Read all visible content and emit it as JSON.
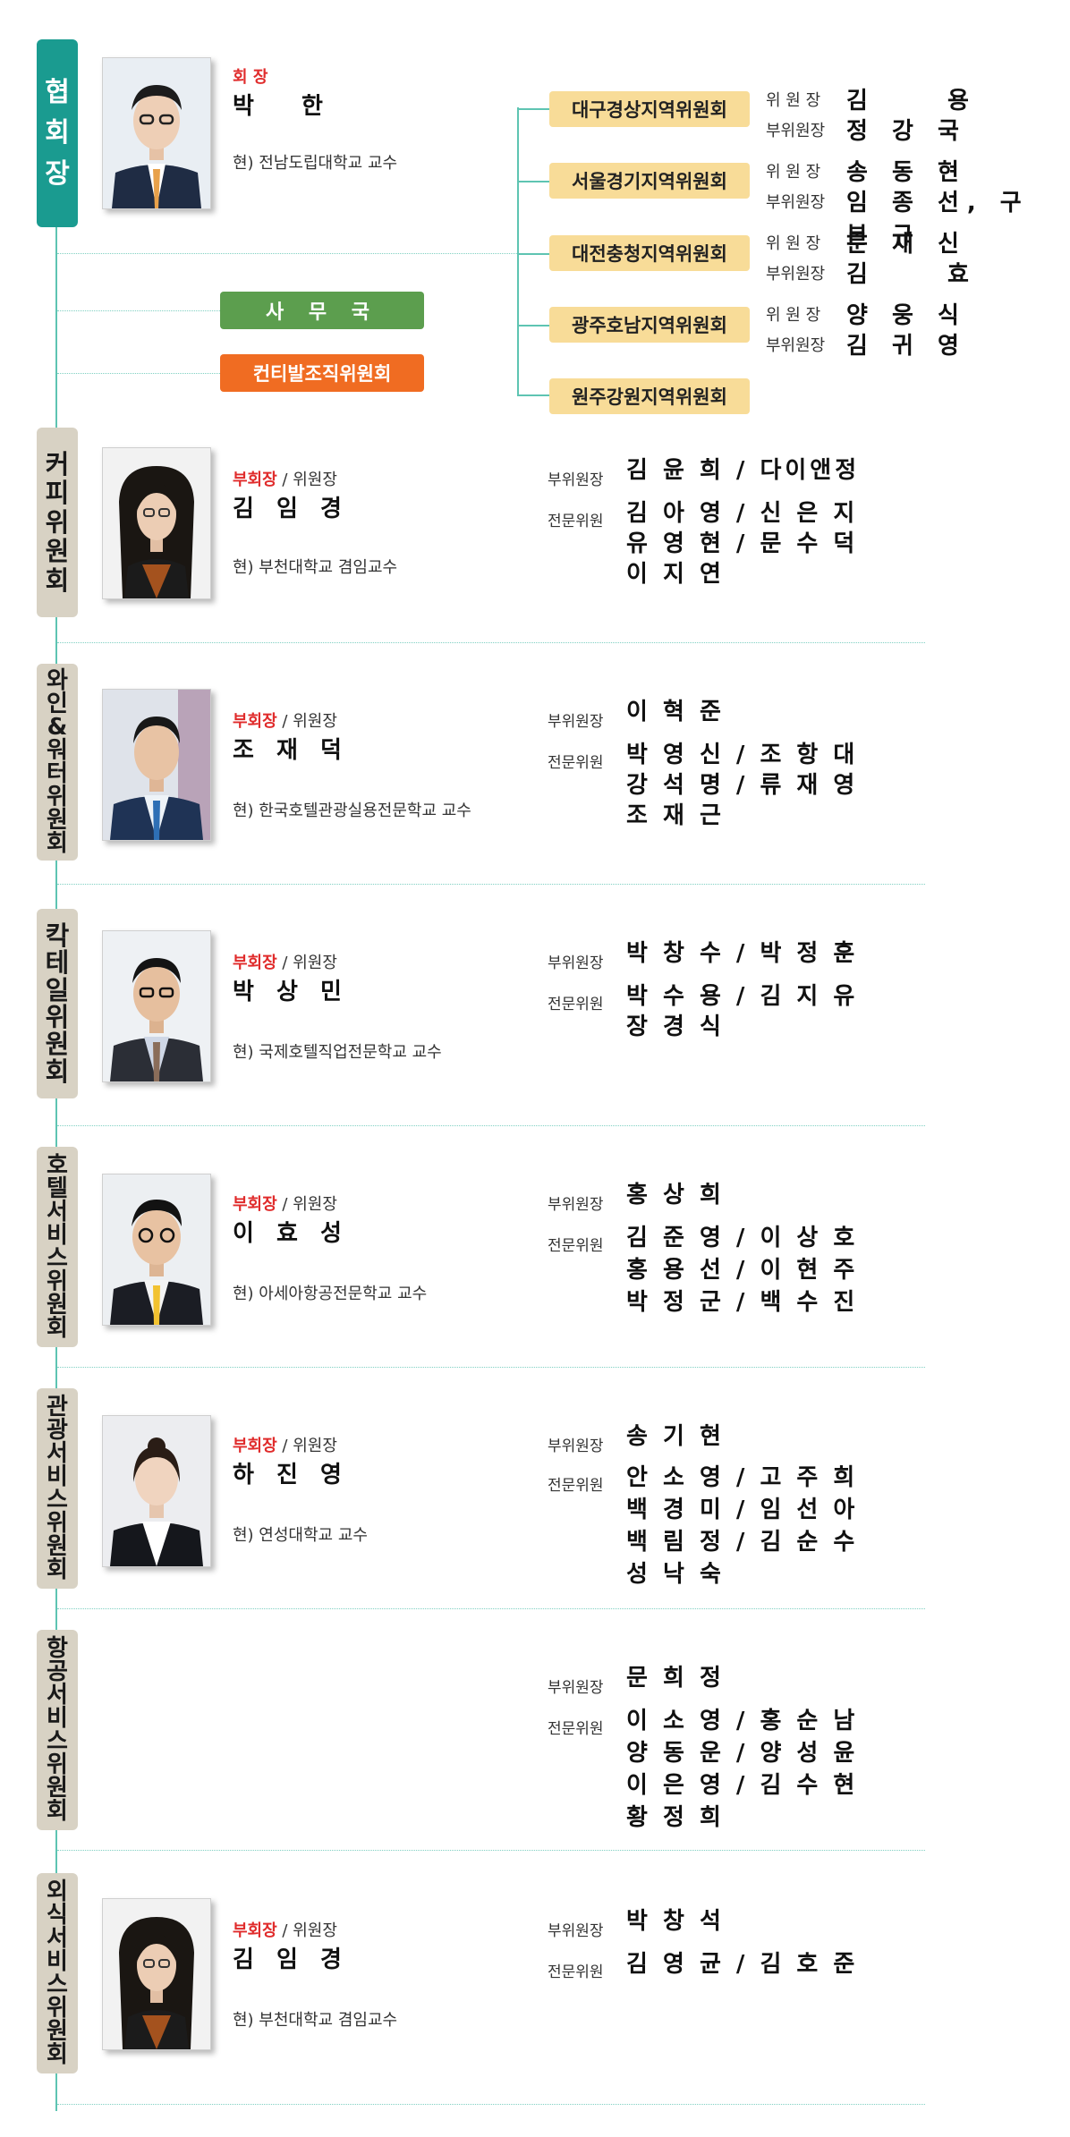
{
  "colors": {
    "accent_teal": "#1a9b90",
    "line": "#5ec4b2",
    "region_bg": "#f8dc98",
    "office_green": "#5c9e4e",
    "office_orange": "#f06c22",
    "red": "#e02b2b",
    "pill_beige": "#d8d2c4"
  },
  "president": {
    "pill": [
      "협",
      "회",
      "장"
    ],
    "role": "회 장",
    "name": "박 한",
    "affiliation": "현) 전남도립대학교 교수"
  },
  "offices": {
    "secretariat": "사 무 국",
    "contents_committee": "컨티발조직위원회"
  },
  "regions": [
    {
      "name": "대구경상지역위원회",
      "rows": [
        {
          "label": "위 원 장",
          "value": "김 용"
        },
        {
          "label": "부위원장",
          "value": "정 강 국"
        }
      ]
    },
    {
      "name": "서울경기지역위원회",
      "rows": [
        {
          "label": "위 원 장",
          "value": "송 동 현"
        },
        {
          "label": "부위원장",
          "value": "임 종 선, 구 본 규"
        }
      ]
    },
    {
      "name": "대전충청지역위원회",
      "rows": [
        {
          "label": "위 원 장",
          "value": "문 재 신"
        },
        {
          "label": "부위원장",
          "value": "김 효"
        }
      ]
    },
    {
      "name": "광주호남지역위원회",
      "rows": [
        {
          "label": "위 원 장",
          "value": "양 웅 식"
        },
        {
          "label": "부위원장",
          "value": "김 귀 영"
        }
      ]
    },
    {
      "name": "원주강원지역위원회",
      "rows": []
    }
  ],
  "committees": [
    {
      "pill": [
        "커",
        "피",
        "위",
        "원",
        "회"
      ],
      "role_red": "부회장",
      "role_rest": " / 위원장",
      "name": "김 임 경",
      "affiliation": "현) 부천대학교 겸임교수",
      "vice_label": "부위원장",
      "vice": "김 윤 희 / 다이앤정",
      "expert_label": "전문위원",
      "experts": [
        "김 아 영 / 신 은 지",
        "유 영 현 / 문 수 덕",
        "이 지 연"
      ]
    },
    {
      "pill": [
        "와",
        "인",
        "&",
        "워",
        "터",
        "위",
        "원",
        "회"
      ],
      "role_red": "부회장",
      "role_rest": " / 위원장",
      "name": "조 재 덕",
      "affiliation": "현) 한국호텔관광실용전문학교 교수",
      "vice_label": "부위원장",
      "vice": "이 혁 준",
      "expert_label": "전문위원",
      "experts": [
        "박 영 신 / 조 항 대",
        "강 석 명 / 류 재 영",
        "조 재 근"
      ]
    },
    {
      "pill": [
        "칵",
        "테",
        "일",
        "위",
        "원",
        "회"
      ],
      "role_red": "부회장",
      "role_rest": " / 위원장",
      "name": "박 상 민",
      "affiliation": "현) 국제호텔직업전문학교 교수",
      "vice_label": "부위원장",
      "vice": "박 창 수 / 박 정 훈",
      "expert_label": "전문위원",
      "experts": [
        "박 수 용 / 김 지 유",
        "장 경 식"
      ]
    },
    {
      "pill": [
        "호",
        "텔",
        "서",
        "비",
        "스",
        "위",
        "원",
        "회"
      ],
      "role_red": "부회장",
      "role_rest": " / 위원장",
      "name": "이 효 성",
      "affiliation": "현) 아세아항공전문학교 교수",
      "vice_label": "부위원장",
      "vice": "홍 상 희",
      "expert_label": "전문위원",
      "experts": [
        "김 준 영 / 이 상 호",
        "홍 용 선 / 이 현 주",
        "박 정 군 / 백 수 진"
      ]
    },
    {
      "pill": [
        "관",
        "광",
        "서",
        "비",
        "스",
        "위",
        "원",
        "회"
      ],
      "role_red": "부회장",
      "role_rest": " / 위원장",
      "name": "하 진 영",
      "affiliation": "현) 연성대학교 교수",
      "vice_label": "부위원장",
      "vice": "송 기 현",
      "expert_label": "전문위원",
      "experts": [
        "안 소 영 / 고 주 희",
        "백 경 미 / 임 선 아",
        "백 림 정 / 김 순 수",
        "성 낙 숙"
      ]
    },
    {
      "pill": [
        "항",
        "공",
        "서",
        "비",
        "스",
        "위",
        "원",
        "회"
      ],
      "vice_label": "부위원장",
      "vice": "문 희 정",
      "expert_label": "전문위원",
      "experts": [
        "이 소 영 / 홍 순 남",
        "양 동 운 / 양 성 윤",
        "이 은 영 / 김 수 현",
        "황 정 희"
      ]
    },
    {
      "pill": [
        "외",
        "식",
        "서",
        "비",
        "스",
        "위",
        "원",
        "회"
      ],
      "role_red": "부회장",
      "role_rest": " / 위원장",
      "name": "김 임 경",
      "affiliation": "현) 부천대학교 겸임교수",
      "vice_label": "부위원장",
      "vice": "박 창 석",
      "expert_label": "전문위원",
      "experts": [
        "김 영 균 / 김 호 준"
      ]
    }
  ]
}
